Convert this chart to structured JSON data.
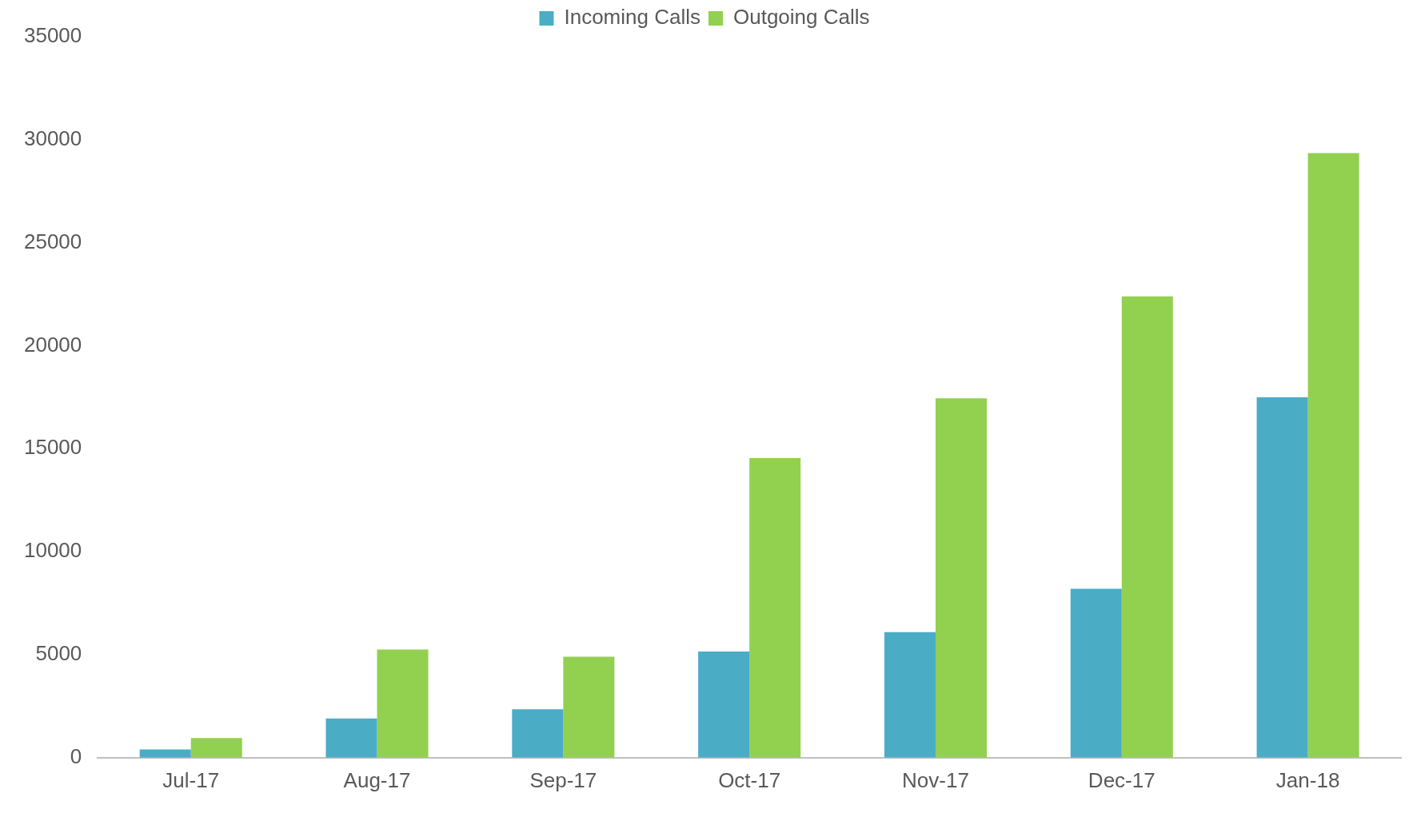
{
  "chart_data": {
    "type": "bar",
    "categories": [
      "Jul-17",
      "Aug-17",
      "Sep-17",
      "Oct-17",
      "Nov-17",
      "Dec-17",
      "Jan-18"
    ],
    "series": [
      {
        "name": "Incoming Calls",
        "color": "#4bacc6",
        "values": [
          400,
          1900,
          2350,
          5150,
          6100,
          8200,
          17500
        ]
      },
      {
        "name": "Outgoing Calls",
        "color": "#92d050",
        "values": [
          950,
          5250,
          4900,
          14550,
          17450,
          22400,
          29350
        ]
      }
    ],
    "ylim": [
      0,
      35000
    ],
    "yticks": [
      0,
      5000,
      10000,
      15000,
      20000,
      25000,
      30000,
      35000
    ],
    "grid": false,
    "legend": "top"
  }
}
